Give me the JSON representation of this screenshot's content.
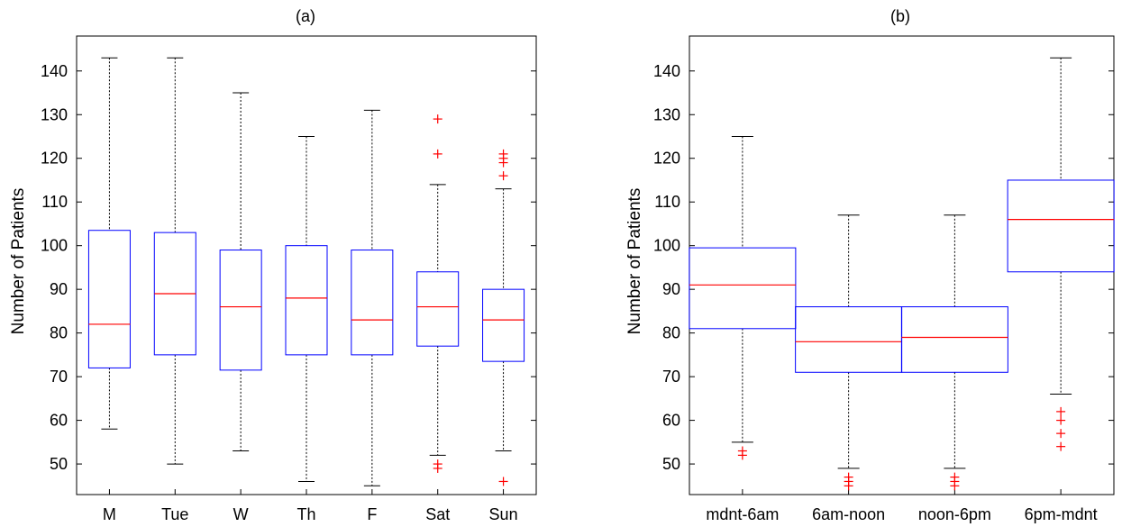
{
  "chart_data": [
    {
      "type": "box",
      "title": "(a)",
      "xlabel": "",
      "ylabel": "Number of Patients",
      "ylim": [
        43,
        148
      ],
      "yticks": [
        50,
        60,
        70,
        80,
        90,
        100,
        110,
        120,
        130,
        140
      ],
      "categories": [
        "M",
        "Tue",
        "W",
        "Th",
        "F",
        "Sat",
        "Sun"
      ],
      "boxes": [
        {
          "category": "M",
          "whisker_low": 58,
          "q1": 72,
          "median": 82,
          "q3": 103.5,
          "whisker_high": 143,
          "outliers": []
        },
        {
          "category": "Tue",
          "whisker_low": 50,
          "q1": 75,
          "median": 89,
          "q3": 103,
          "whisker_high": 143,
          "outliers": []
        },
        {
          "category": "W",
          "whisker_low": 53,
          "q1": 71.5,
          "median": 86,
          "q3": 99,
          "whisker_high": 135,
          "outliers": []
        },
        {
          "category": "Th",
          "whisker_low": 46,
          "q1": 75,
          "median": 88,
          "q3": 100,
          "whisker_high": 125,
          "outliers": []
        },
        {
          "category": "F",
          "whisker_low": 45,
          "q1": 75,
          "median": 83,
          "q3": 99,
          "whisker_high": 131,
          "outliers": []
        },
        {
          "category": "Sat",
          "whisker_low": 52,
          "q1": 77,
          "median": 86,
          "q3": 94,
          "whisker_high": 114,
          "outliers": [
            129,
            121,
            50,
            49
          ]
        },
        {
          "category": "Sun",
          "whisker_low": 53,
          "q1": 73.5,
          "median": 83,
          "q3": 90,
          "whisker_high": 113,
          "outliers": [
            121,
            120,
            119,
            116,
            46
          ]
        }
      ],
      "colors": {
        "box": "#0000ff",
        "median": "#ff0000",
        "outlier": "#ff0000",
        "whisker": "#000000"
      },
      "grid": false
    },
    {
      "type": "box",
      "title": "(b)",
      "xlabel": "",
      "ylabel": "Number of Patients",
      "ylim": [
        43,
        148
      ],
      "yticks": [
        50,
        60,
        70,
        80,
        90,
        100,
        110,
        120,
        130,
        140
      ],
      "categories": [
        "mdnt-6am",
        "6am-noon",
        "noon-6pm",
        "6pm-mdnt"
      ],
      "boxes": [
        {
          "category": "mdnt-6am",
          "whisker_low": 55,
          "q1": 81,
          "median": 91,
          "q3": 99.5,
          "whisker_high": 125,
          "outliers": [
            53,
            52
          ]
        },
        {
          "category": "6am-noon",
          "whisker_low": 49,
          "q1": 71,
          "median": 78,
          "q3": 86,
          "whisker_high": 107,
          "outliers": [
            47,
            46,
            45
          ]
        },
        {
          "category": "noon-6pm",
          "whisker_low": 49,
          "q1": 71,
          "median": 79,
          "q3": 86,
          "whisker_high": 107,
          "outliers": [
            47,
            46,
            45
          ]
        },
        {
          "category": "6pm-mdnt",
          "whisker_low": 66,
          "q1": 94,
          "median": 106,
          "q3": 115,
          "whisker_high": 143,
          "outliers": [
            62,
            60,
            57,
            54
          ]
        }
      ],
      "colors": {
        "box": "#0000ff",
        "median": "#ff0000",
        "outlier": "#ff0000",
        "whisker": "#000000"
      },
      "grid": false
    }
  ]
}
